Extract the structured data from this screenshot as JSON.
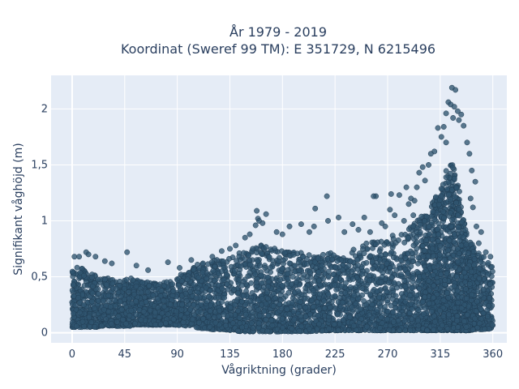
{
  "chart_data": {
    "type": "scatter",
    "title": "År 1979 - 2019",
    "subtitle": "Koordinat (Sweref 99 TM): E 351729, N 6215496",
    "xlabel": "Vågriktning (grader)",
    "ylabel": "Signifikant våghöjd (m)",
    "xlim": [
      -18,
      372
    ],
    "ylim": [
      -0.09,
      2.3
    ],
    "x_ticks": [
      0,
      45,
      90,
      135,
      180,
      225,
      270,
      315,
      360
    ],
    "y_ticks": [
      0,
      0.5,
      1,
      1.5,
      2
    ],
    "y_tick_labels": [
      "0",
      "0,5",
      "1",
      "1,5",
      "2"
    ],
    "grid": true,
    "marker_color": "#2f5570",
    "plot_background": "#e5ecf6",
    "series": [
      {
        "values_description": "dense cloud",
        "x": [
          0,
          5,
          10,
          15,
          20,
          25,
          30,
          35,
          40,
          45,
          50,
          55,
          60,
          65,
          70,
          75,
          80,
          85,
          90,
          95,
          100,
          105,
          110,
          115,
          120,
          125,
          130,
          135,
          140,
          145,
          150,
          155,
          160,
          165,
          170,
          175,
          180,
          185,
          190,
          195,
          200,
          205,
          210,
          215,
          220,
          225,
          230,
          235,
          240,
          245,
          250,
          255,
          260,
          265,
          270,
          275,
          280,
          285,
          290,
          295,
          300,
          305,
          310,
          315,
          320,
          325,
          330,
          335,
          340,
          345,
          350,
          355,
          360
        ],
        "y_upper": [
          0.55,
          0.6,
          0.58,
          0.55,
          0.52,
          0.5,
          0.5,
          0.48,
          0.47,
          0.48,
          0.5,
          0.48,
          0.46,
          0.45,
          0.44,
          0.45,
          0.48,
          0.5,
          0.52,
          0.52,
          0.55,
          0.6,
          0.62,
          0.65,
          0.66,
          0.65,
          0.66,
          0.68,
          0.7,
          0.72,
          0.75,
          0.78,
          0.8,
          0.78,
          0.76,
          0.75,
          0.75,
          0.72,
          0.72,
          0.72,
          0.7,
          0.7,
          0.7,
          0.7,
          0.72,
          0.72,
          0.72,
          0.72,
          0.74,
          0.76,
          0.8,
          0.82,
          0.82,
          0.85,
          0.85,
          0.88,
          0.9,
          0.92,
          0.95,
          1.0,
          1.05,
          1.1,
          1.2,
          1.3,
          1.45,
          1.6,
          1.4,
          1.0,
          0.85,
          0.75,
          0.7,
          0.65,
          0.6
        ],
        "y_lower": [
          0.05,
          0.05,
          0.05,
          0.05,
          0.05,
          0.06,
          0.06,
          0.06,
          0.06,
          0.06,
          0.06,
          0.07,
          0.07,
          0.07,
          0.07,
          0.07,
          0.07,
          0.07,
          0.07,
          0.06,
          0.06,
          0.05,
          0.04,
          0.04,
          0.03,
          0.03,
          0.03,
          0.02,
          0.02,
          0.01,
          0.01,
          0.01,
          0.01,
          0.01,
          0.01,
          0.01,
          0.01,
          0.01,
          0.01,
          0.01,
          0.01,
          0.01,
          0.01,
          0.02,
          0.02,
          0.02,
          0.02,
          0.02,
          0.02,
          0.02,
          0.02,
          0.02,
          0.02,
          0.02,
          0.02,
          0.02,
          0.02,
          0.02,
          0.02,
          0.02,
          0.02,
          0.02,
          0.02,
          0.02,
          0.02,
          0.02,
          0.02,
          0.02,
          0.02,
          0.03,
          0.03,
          0.03,
          0.04
        ]
      }
    ],
    "outliers": [
      {
        "x": 325,
        "y": 2.19
      },
      {
        "x": 328,
        "y": 2.17
      },
      {
        "x": 322,
        "y": 2.06
      },
      {
        "x": 324,
        "y": 2.04
      },
      {
        "x": 327,
        "y": 2.02
      },
      {
        "x": 330,
        "y": 1.98
      },
      {
        "x": 333,
        "y": 1.95
      },
      {
        "x": 320,
        "y": 1.96
      },
      {
        "x": 326,
        "y": 1.92
      },
      {
        "x": 331,
        "y": 1.9
      },
      {
        "x": 318,
        "y": 1.84
      },
      {
        "x": 313,
        "y": 1.83
      },
      {
        "x": 335,
        "y": 1.85
      },
      {
        "x": 338,
        "y": 1.7
      },
      {
        "x": 316,
        "y": 1.75
      },
      {
        "x": 320,
        "y": 1.7
      },
      {
        "x": 310,
        "y": 1.62
      },
      {
        "x": 307,
        "y": 1.6
      },
      {
        "x": 340,
        "y": 1.6
      },
      {
        "x": 305,
        "y": 1.5
      },
      {
        "x": 300,
        "y": 1.48
      },
      {
        "x": 297,
        "y": 1.43
      },
      {
        "x": 342,
        "y": 1.45
      },
      {
        "x": 345,
        "y": 1.35
      },
      {
        "x": 302,
        "y": 1.36
      },
      {
        "x": 295,
        "y": 1.3
      },
      {
        "x": 290,
        "y": 1.2
      },
      {
        "x": 293,
        "y": 1.18
      },
      {
        "x": 288,
        "y": 1.15
      },
      {
        "x": 286,
        "y": 1.3
      },
      {
        "x": 280,
        "y": 1.23
      },
      {
        "x": 273,
        "y": 1.24
      },
      {
        "x": 260,
        "y": 1.22
      },
      {
        "x": 258,
        "y": 1.22
      },
      {
        "x": 341,
        "y": 1.2
      },
      {
        "x": 343,
        "y": 1.12
      },
      {
        "x": 272,
        "y": 1.1
      },
      {
        "x": 276,
        "y": 1.05
      },
      {
        "x": 250,
        "y": 1.03
      },
      {
        "x": 265,
        "y": 0.98
      },
      {
        "x": 240,
        "y": 0.97
      },
      {
        "x": 228,
        "y": 1.03
      },
      {
        "x": 219,
        "y": 1.0
      },
      {
        "x": 218,
        "y": 1.22
      },
      {
        "x": 208,
        "y": 1.11
      },
      {
        "x": 196,
        "y": 0.97
      },
      {
        "x": 186,
        "y": 0.95
      },
      {
        "x": 166,
        "y": 1.06
      },
      {
        "x": 158,
        "y": 1.09
      },
      {
        "x": 159,
        "y": 1.02
      },
      {
        "x": 160,
        "y": 1.0
      },
      {
        "x": 163,
        "y": 0.98
      },
      {
        "x": 157,
        "y": 0.96
      },
      {
        "x": 175,
        "y": 0.9
      },
      {
        "x": 180,
        "y": 0.88
      },
      {
        "x": 203,
        "y": 0.9
      },
      {
        "x": 207,
        "y": 0.95
      },
      {
        "x": 233,
        "y": 0.9
      },
      {
        "x": 245,
        "y": 0.92
      },
      {
        "x": 255,
        "y": 0.9
      },
      {
        "x": 268,
        "y": 0.95
      },
      {
        "x": 284,
        "y": 1.0
      },
      {
        "x": 292,
        "y": 1.05
      },
      {
        "x": 135,
        "y": 0.75
      },
      {
        "x": 140,
        "y": 0.78
      },
      {
        "x": 128,
        "y": 0.73
      },
      {
        "x": 148,
        "y": 0.85
      },
      {
        "x": 152,
        "y": 0.88
      },
      {
        "x": 2,
        "y": 0.68
      },
      {
        "x": 6,
        "y": 0.68
      },
      {
        "x": 12,
        "y": 0.72
      },
      {
        "x": 14,
        "y": 0.7
      },
      {
        "x": 20,
        "y": 0.68
      },
      {
        "x": 28,
        "y": 0.64
      },
      {
        "x": 34,
        "y": 0.62
      },
      {
        "x": 47,
        "y": 0.72
      },
      {
        "x": 55,
        "y": 0.6
      },
      {
        "x": 65,
        "y": 0.56
      },
      {
        "x": 82,
        "y": 0.63
      },
      {
        "x": 92,
        "y": 0.58
      },
      {
        "x": 102,
        "y": 0.65
      },
      {
        "x": 112,
        "y": 0.62
      },
      {
        "x": 120,
        "y": 0.68
      },
      {
        "x": 354,
        "y": 0.72
      },
      {
        "x": 358,
        "y": 0.68
      },
      {
        "x": 348,
        "y": 0.8
      },
      {
        "x": 350,
        "y": 0.9
      },
      {
        "x": 346,
        "y": 0.95
      }
    ]
  }
}
